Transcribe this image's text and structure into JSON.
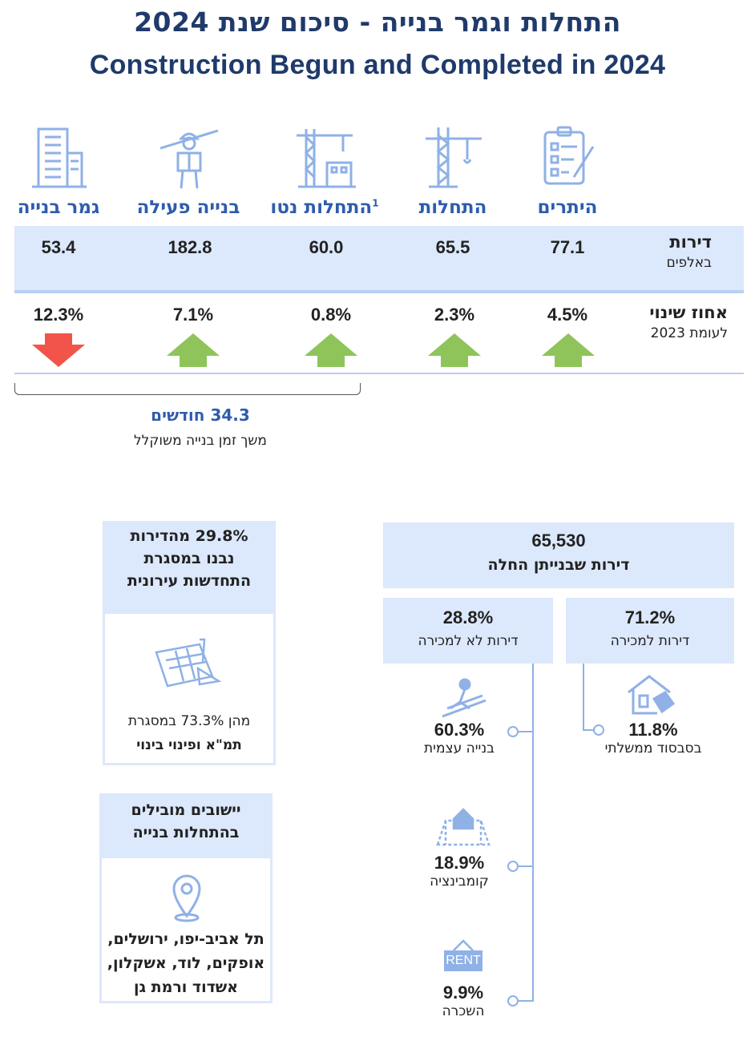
{
  "title_he": "התחלות וגמר בנייה - סיכום שנת 2024",
  "title_en": "Construction Begun and Completed in 2024",
  "columns": [
    {
      "label": "היתרים",
      "icon": "clipboard-icon",
      "value": "77.1",
      "change": "4.5%",
      "direction": "up"
    },
    {
      "label": "התחלות",
      "icon": "tower-crane-icon",
      "value": "65.5",
      "change": "2.3%",
      "direction": "up"
    },
    {
      "label": "התחלות נטו",
      "sup": "1",
      "icon": "crane-building-icon",
      "value": "60.0",
      "change": "0.8%",
      "direction": "up"
    },
    {
      "label": "בנייה פעילה",
      "icon": "construction-worker-icon",
      "value": "182.8",
      "change": "7.1%",
      "direction": "up"
    },
    {
      "label": "גמר בנייה",
      "icon": "office-building-icon",
      "value": "53.4",
      "change": "12.3%",
      "direction": "down"
    }
  ],
  "row_units": {
    "label": "דירות",
    "sub": "באלפים"
  },
  "row_change": {
    "label": "אחוז שינוי",
    "sub": "לעומת 2023"
  },
  "duration": {
    "value": "34.3 חודשים",
    "label": "משך זמן בנייה משוקלל"
  },
  "colors": {
    "title": "#1f3a6b",
    "accent": "#2e5cad",
    "band": "#dce8fb",
    "up": "#8fc45a",
    "down": "#f2544a"
  },
  "urban_box": {
    "title_line1": "29.8% מהדירות",
    "title_line2": "נבנו במסגרת",
    "title_line3": "התחדשות עירונית",
    "icon": "blueprint-icon",
    "note_line1": "מהן 73.3% במסגרת",
    "note_line2": "תמ\"א ופינוי בינוי"
  },
  "leading_box": {
    "title_line1": "יישובים מובילים",
    "title_line2": "בהתחלות בנייה",
    "icon": "location-pin-icon",
    "cities_line1": "תל אביב-יפו, ירושלים,",
    "cities_line2": "אופקים, לוד, אשקלון,",
    "cities_line3": "אשדוד ורמת גן"
  },
  "starts_box": {
    "number": "65,530",
    "label": "דירות שבנייתן החלה"
  },
  "for_sale": {
    "pct": "71.2%",
    "label": "דירות למכירה"
  },
  "not_for_sale": {
    "pct": "28.8%",
    "label": "דירות לא למכירה"
  },
  "subsidy": {
    "pct": "11.8%",
    "label": "בסבסוד ממשלתי",
    "icon": "house-tag-icon"
  },
  "self_build": {
    "pct": "60.3%",
    "label": "בנייה עצמית",
    "icon": "builder-icon"
  },
  "combination": {
    "pct": "18.9%",
    "label": "קומבינציה",
    "icon": "house-plan-icon"
  },
  "rent": {
    "pct": "9.9%",
    "label": "השכרה",
    "icon": "rent-sign-icon",
    "sign": "RENT"
  }
}
